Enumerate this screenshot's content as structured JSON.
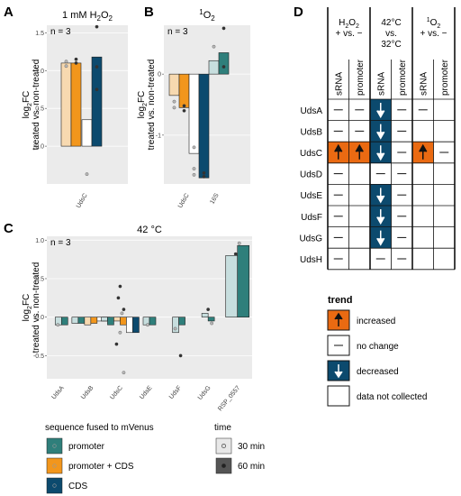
{
  "panels": {
    "A": "A",
    "B": "B",
    "C": "C",
    "D": "D"
  },
  "colors": {
    "promoter_30": "#c7dede",
    "promoter_60": "#2f7f7b",
    "promcds_30": "#f7d9b0",
    "promcds_60": "#f2961c",
    "cds_30": "#ffffff",
    "cds_60": "#0c4a6e",
    "increased": "#ea6a12",
    "decreased": "#0c4a6e"
  },
  "chart_data": [
    {
      "id": "A",
      "type": "bar",
      "title_parts": [
        "1 mM H",
        "2",
        "O",
        "2"
      ],
      "ylabel_main": "log",
      "ylabel_sub": "2",
      "ylabel_rest": "FC",
      "ylabel2": "treated vs. non-treated",
      "annotation": "n = 3",
      "categories": [
        "UdsC"
      ],
      "ylim": [
        -0.5,
        1.6
      ],
      "yticks": [
        "0.0",
        "0.5",
        "1.0",
        "1.5"
      ],
      "ytick_values": [
        0,
        0.5,
        1.0,
        1.5
      ],
      "bars": [
        {
          "construct": "promoter + CDS",
          "time": "30 min",
          "value": 1.1
        },
        {
          "construct": "promoter + CDS",
          "time": "60 min",
          "value": 1.1
        },
        {
          "construct": "CDS",
          "time": "30 min",
          "value": 0.35
        },
        {
          "construct": "CDS",
          "time": "60 min",
          "value": 1.18
        }
      ],
      "points": [
        [
          0,
          1.12
        ],
        [
          0,
          1.06
        ],
        [
          1,
          1.15
        ],
        [
          1,
          1.1
        ],
        [
          2,
          -0.37
        ],
        [
          3,
          1.58
        ],
        [
          3,
          0.75
        ],
        [
          3,
          1.05
        ]
      ]
    },
    {
      "id": "B",
      "type": "bar",
      "title_parts": [
        "1",
        "O",
        "2"
      ],
      "ylabel_main": "log",
      "ylabel_sub": "2",
      "ylabel_rest": "FC",
      "ylabel2": "treated vs. non-treated",
      "annotation": "n = 3",
      "categories": [
        "UdsC",
        "16S"
      ],
      "ylim": [
        -1.8,
        0.8
      ],
      "yticks": [
        "-1",
        "0"
      ],
      "ytick_values": [
        -1,
        0
      ],
      "bars": [
        {
          "cat": 0,
          "construct": "promoter + CDS",
          "time": "30 min",
          "value": -0.35
        },
        {
          "cat": 0,
          "construct": "promoter + CDS",
          "time": "60 min",
          "value": -0.55
        },
        {
          "cat": 0,
          "construct": "CDS",
          "time": "30 min",
          "value": -1.3
        },
        {
          "cat": 0,
          "construct": "CDS",
          "time": "60 min",
          "value": -1.7
        },
        {
          "cat": 1,
          "construct": "promoter",
          "time": "30 min",
          "value": 0.22
        },
        {
          "cat": 1,
          "construct": "promoter",
          "time": "60 min",
          "value": 0.35
        }
      ],
      "points": [
        [
          0,
          -0.55
        ],
        [
          0,
          -0.45
        ],
        [
          1,
          -0.52
        ],
        [
          1,
          -0.6
        ],
        [
          2,
          -1.2
        ],
        [
          2,
          -1.55
        ],
        [
          2,
          -1.65
        ],
        [
          3,
          -1.62
        ],
        [
          3,
          -1.68
        ],
        [
          4,
          0.45
        ],
        [
          5,
          0.12
        ],
        [
          5,
          0.75
        ]
      ]
    },
    {
      "id": "C",
      "type": "bar",
      "title": "42 °C",
      "ylabel_main": "log",
      "ylabel_sub": "2",
      "ylabel_rest": "FC",
      "ylabel2": "treated vs. non-treated",
      "annotation": "n = 3",
      "categories": [
        "UdsA",
        "UdsB",
        "UdsC",
        "UdsE",
        "UdsF",
        "UdsG",
        "RSP_0557"
      ],
      "ylim": [
        -0.8,
        1.05
      ],
      "yticks": [
        "1.0",
        "0.5",
        "0.0",
        "-0.5"
      ],
      "ytick_values": [
        1.0,
        0.5,
        0.0,
        -0.5
      ],
      "groups": [
        {
          "cat": "UdsA",
          "bars": [
            {
              "construct": "promoter",
              "time": "30 min",
              "value": -0.1
            },
            {
              "construct": "promoter",
              "time": "60 min",
              "value": -0.1
            }
          ]
        },
        {
          "cat": "UdsB",
          "bars": [
            {
              "construct": "promoter",
              "time": "30 min",
              "value": -0.08
            },
            {
              "construct": "promoter",
              "time": "60 min",
              "value": -0.08
            },
            {
              "construct": "promoter + CDS",
              "time": "30 min",
              "value": -0.1
            },
            {
              "construct": "promoter + CDS",
              "time": "60 min",
              "value": -0.08
            },
            {
              "construct": "CDS",
              "time": "30 min",
              "value": -0.05
            },
            {
              "construct": "CDS",
              "time": "60 min",
              "value": -0.05
            }
          ]
        },
        {
          "cat": "UdsC",
          "bars": [
            {
              "construct": "promoter",
              "time": "30 min",
              "value": -0.05
            },
            {
              "construct": "promoter",
              "time": "60 min",
              "value": -0.1
            },
            {
              "construct": "promoter + CDS",
              "time": "30 min",
              "value": -0.05
            },
            {
              "construct": "promoter + CDS",
              "time": "60 min",
              "value": -0.1
            },
            {
              "construct": "CDS",
              "time": "30 min",
              "value": -0.2
            },
            {
              "construct": "CDS",
              "time": "60 min",
              "value": -0.2
            }
          ]
        },
        {
          "cat": "UdsE",
          "bars": [
            {
              "construct": "promoter",
              "time": "30 min",
              "value": -0.1
            },
            {
              "construct": "promoter",
              "time": "60 min",
              "value": -0.1
            }
          ]
        },
        {
          "cat": "UdsF",
          "bars": [
            {
              "construct": "promoter",
              "time": "30 min",
              "value": -0.2
            },
            {
              "construct": "promoter",
              "time": "60 min",
              "value": -0.1
            }
          ]
        },
        {
          "cat": "UdsG",
          "bars": [
            {
              "construct": "promoter",
              "time": "30 min",
              "value": 0.05
            },
            {
              "construct": "promoter",
              "time": "60 min",
              "value": -0.05
            }
          ]
        },
        {
          "cat": "RSP_0557",
          "bars": [
            {
              "construct": "promoter",
              "time": "30 min",
              "value": 0.8
            },
            {
              "construct": "promoter",
              "time": "60 min",
              "value": 0.93
            }
          ]
        }
      ],
      "points": [
        [
          0,
          -0.1
        ],
        [
          2,
          0.4
        ],
        [
          2,
          -0.72
        ],
        [
          2,
          0.25
        ],
        [
          2,
          0.05
        ],
        [
          2,
          -0.35
        ],
        [
          2,
          -0.2
        ],
        [
          2,
          0.1
        ],
        [
          3,
          -0.1
        ],
        [
          4,
          -0.5
        ],
        [
          4,
          -0.15
        ],
        [
          5,
          0.1
        ],
        [
          5,
          -0.08
        ],
        [
          6,
          0.82
        ],
        [
          6,
          0.96
        ]
      ]
    },
    {
      "id": "D",
      "type": "table",
      "headers": [
        {
          "lines": [
            "H2O2",
            "+ vs. −"
          ],
          "cols": [
            "sRNA",
            "promoter"
          ]
        },
        {
          "lines": [
            "42°C",
            "vs.",
            "32°C"
          ],
          "cols": [
            "sRNA",
            "promoter"
          ]
        },
        {
          "lines": [
            "1O2",
            "+ vs. −"
          ],
          "cols": [
            "sRNA",
            "promoter"
          ]
        }
      ],
      "rows": [
        {
          "name": "UdsA",
          "cells": [
            "none",
            "none",
            "decreased",
            "none",
            "none",
            ""
          ]
        },
        {
          "name": "UdsB",
          "cells": [
            "none",
            "none",
            "decreased",
            "none",
            "",
            ""
          ]
        },
        {
          "name": "UdsC",
          "cells": [
            "increased",
            "increased",
            "decreased",
            "none",
            "increased",
            "none"
          ]
        },
        {
          "name": "UdsD",
          "cells": [
            "none",
            "",
            "none",
            "none",
            "",
            ""
          ]
        },
        {
          "name": "UdsE",
          "cells": [
            "none",
            "",
            "decreased",
            "none",
            "",
            ""
          ]
        },
        {
          "name": "UdsF",
          "cells": [
            "none",
            "",
            "decreased",
            "none",
            "",
            ""
          ]
        },
        {
          "name": "UdsG",
          "cells": [
            "none",
            "",
            "decreased",
            "none",
            "",
            ""
          ]
        },
        {
          "name": "UdsH",
          "cells": [
            "none",
            "",
            "none",
            "none",
            "",
            ""
          ]
        }
      ],
      "legend": {
        "title": "trend",
        "items": [
          {
            "key": "increased",
            "label": "increased"
          },
          {
            "key": "none",
            "label": "no change"
          },
          {
            "key": "decreased",
            "label": "decreased"
          },
          {
            "key": "",
            "label": "data not collected"
          }
        ]
      }
    }
  ],
  "legend_fused": {
    "title": "sequence fused to mVenus",
    "items": [
      {
        "key": "promoter",
        "label": "promoter"
      },
      {
        "key": "promcds",
        "label": "promoter + CDS"
      },
      {
        "key": "cds",
        "label": "CDS"
      }
    ]
  },
  "legend_time": {
    "title": "time",
    "items": [
      {
        "key": "30",
        "label": "30 min"
      },
      {
        "key": "60",
        "label": "60 min"
      }
    ]
  }
}
